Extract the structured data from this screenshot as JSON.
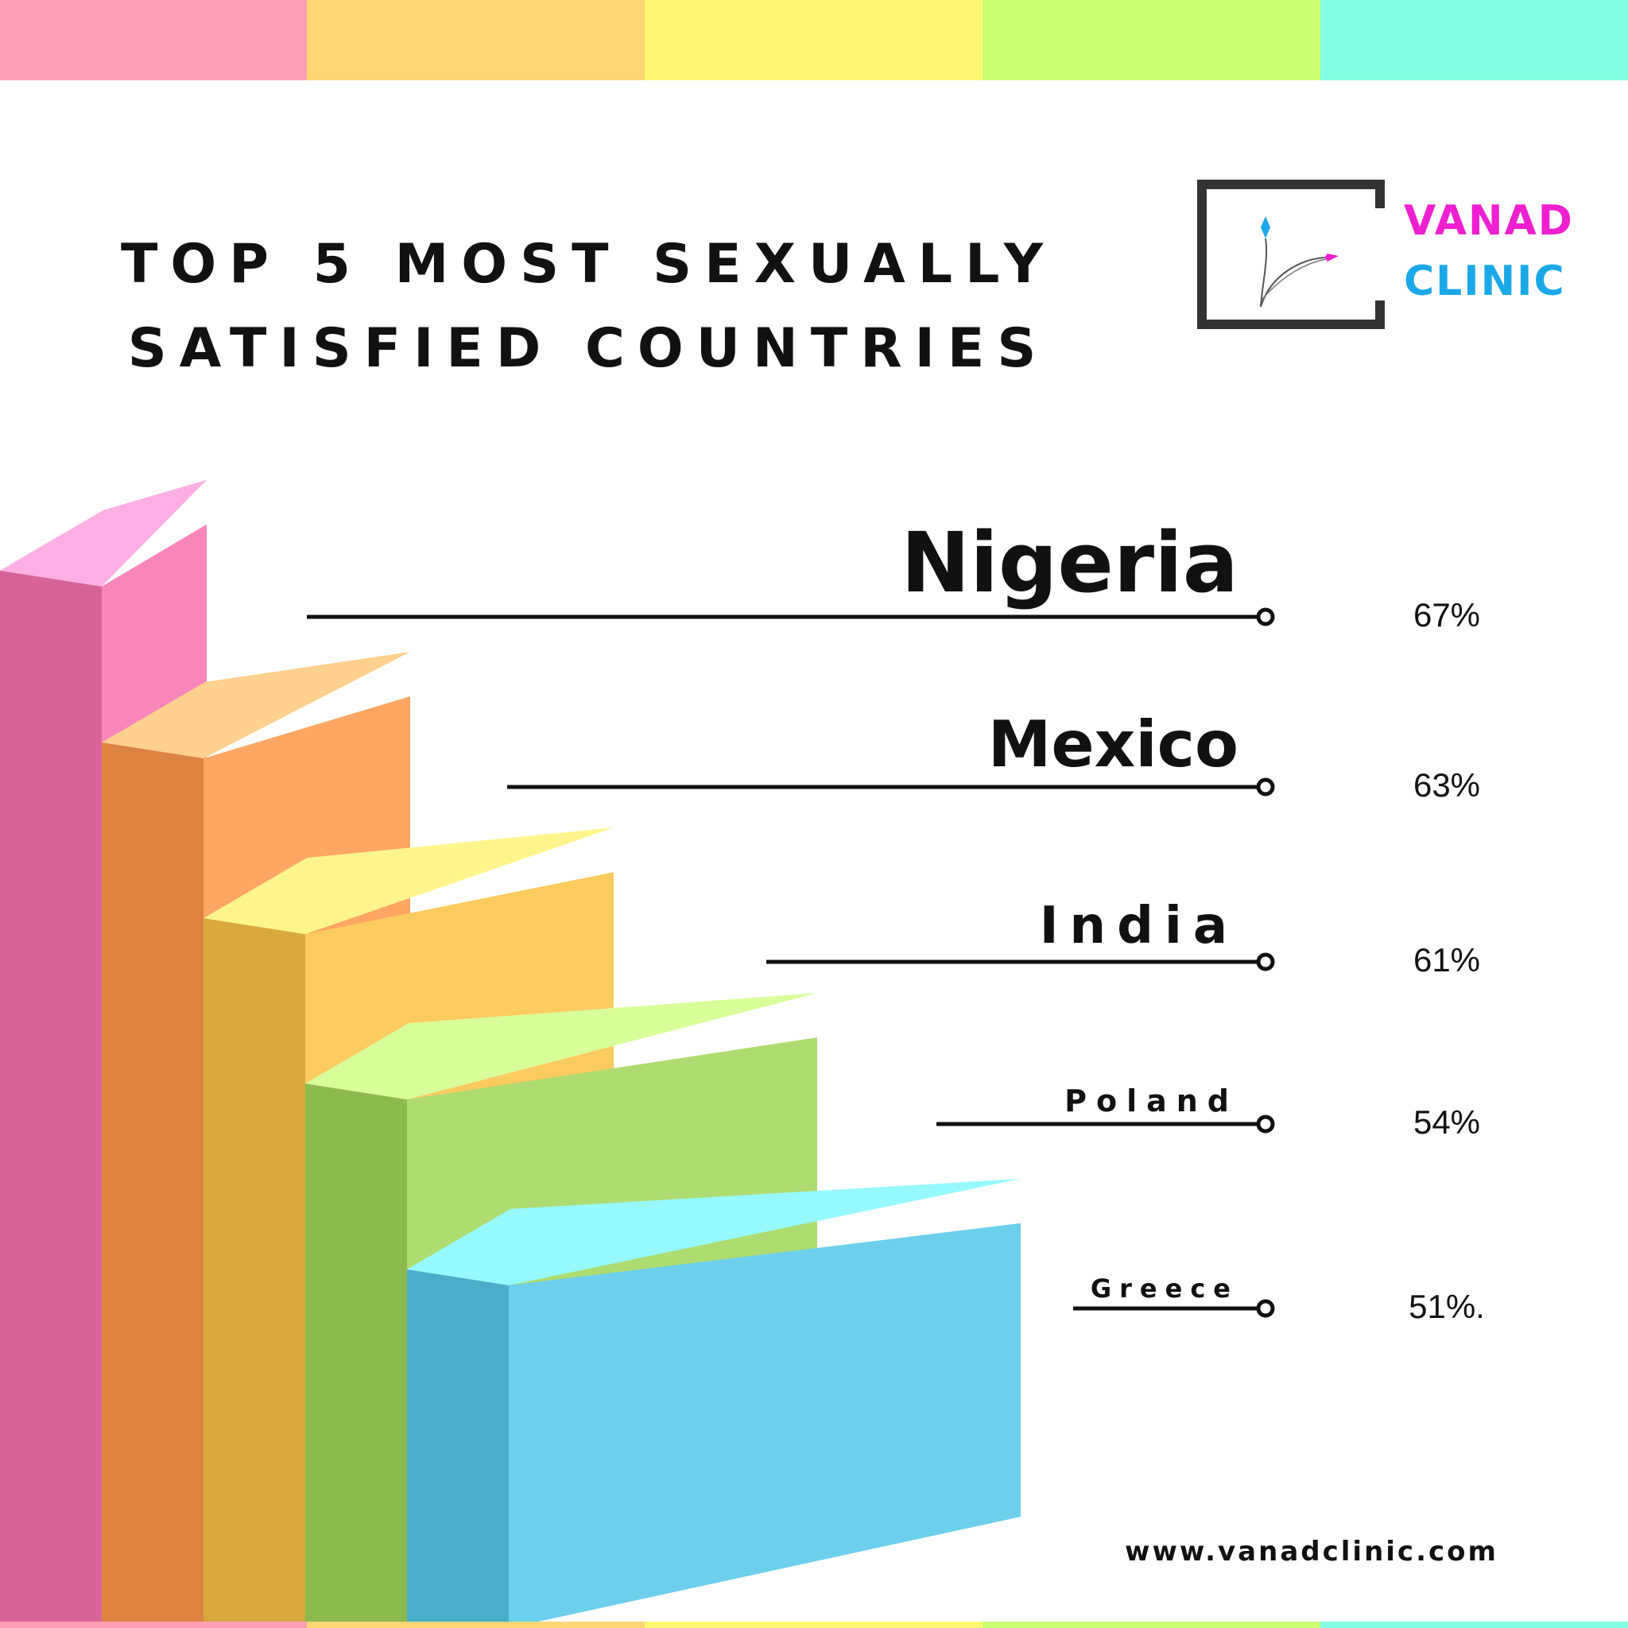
{
  "colors": {
    "stripe": [
      "#fda0b5",
      "#fed676",
      "#fff772",
      "#ccff71",
      "#85ffe3"
    ],
    "logo_vanad": "#ee1fd0",
    "logo_clinic": "#1ba8e8",
    "logo_frame": "#333333"
  },
  "title": {
    "line1": "TOP 5 MOST SEXUALLY",
    "line2": "SATISFIED COUNTRIES"
  },
  "logo": {
    "word1": "VANAD",
    "word2": "CLINIC"
  },
  "chart_data": {
    "type": "bar",
    "title": "TOP 5 MOST SEXUALLY SATISFIED COUNTRIES",
    "categories": [
      "Nigeria",
      "Mexico",
      "India",
      "Poland",
      "Greece"
    ],
    "values": [
      67,
      63,
      61,
      54,
      51
    ],
    "value_labels": [
      "67%",
      "63%",
      "61%",
      "54%",
      "51%."
    ],
    "unit": "%",
    "block_colors": [
      "#f47fb4",
      "#f9a05e",
      "#f6c55a",
      "#a9d66a",
      "#66c9e6"
    ]
  },
  "website": "www.vanadclinic.com"
}
